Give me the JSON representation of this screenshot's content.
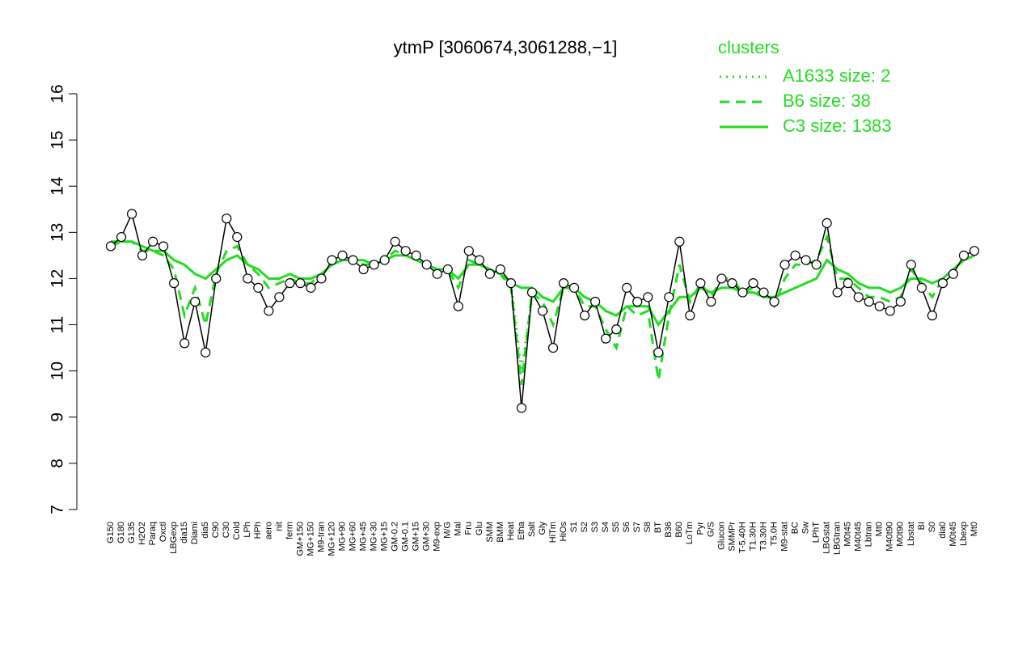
{
  "chart_data": {
    "type": "line",
    "title": "ytmP [3060674,3061288,−1]",
    "legend_title": "clusters",
    "categories": [
      "G150",
      "G180",
      "G135",
      "H2O2",
      "Paraq",
      "Oxctl",
      "LBGexp",
      "dia15",
      "Diami",
      "dia5",
      "C90",
      "C30",
      "Cold",
      "LPh",
      "HPh",
      "aero",
      "nit",
      "ferm",
      "GM+150",
      "MG+150",
      "M9-tran",
      "MG+120",
      "MG+90",
      "MG+60",
      "MG+45",
      "MG+30",
      "MG+15",
      "GM-0.2",
      "GM-0.1",
      "GM+15",
      "GM+30",
      "M9-exp",
      "M/G",
      "Mal",
      "Fru",
      "Glu",
      "SMM",
      "BMM",
      "Heat",
      "Etha",
      "Salt",
      "Gly",
      "HiTm",
      "HiOs",
      "S1",
      "S2",
      "S3",
      "S4",
      "S5",
      "S6",
      "S7",
      "S8",
      "BT",
      "B36",
      "B60",
      "LoTm",
      "Pyr",
      "G/S",
      "Glucon",
      "SMMPr",
      "T-5.40H",
      "T1.30H",
      "T3.30H",
      "T5.0H",
      "M9-stat",
      "BC",
      "Sw",
      "LPhT",
      "LBGstat",
      "LBGtran",
      "M0t45",
      "M40t45",
      "Lbtran",
      "Mt0",
      "M40t90",
      "M0t90",
      "Lbstat",
      "BI",
      "S0",
      "dia0",
      "M0t45",
      "Lbexp",
      "Mt0"
    ],
    "values": [
      12.7,
      12.9,
      13.4,
      12.5,
      12.8,
      12.7,
      11.9,
      10.6,
      11.5,
      10.4,
      12.0,
      13.3,
      12.9,
      12.0,
      11.8,
      11.3,
      11.6,
      11.9,
      11.9,
      11.8,
      12.0,
      12.4,
      12.5,
      12.4,
      12.2,
      12.3,
      12.4,
      12.8,
      12.6,
      12.5,
      12.3,
      12.1,
      12.2,
      11.4,
      12.6,
      12.4,
      12.1,
      12.2,
      11.9,
      9.2,
      11.7,
      11.3,
      10.5,
      11.9,
      11.8,
      11.2,
      11.5,
      10.7,
      10.9,
      11.8,
      11.5,
      11.6,
      10.4,
      11.6,
      12.8,
      11.2,
      11.9,
      11.5,
      12.0,
      11.9,
      11.7,
      11.9,
      11.7,
      11.5,
      12.3,
      12.5,
      12.4,
      12.3,
      13.2,
      11.7,
      11.9,
      11.6,
      11.5,
      11.4,
      11.3,
      11.5,
      12.3,
      11.8,
      11.2,
      11.9,
      12.1,
      12.5,
      12.6
    ],
    "series": [
      {
        "name": "A1633 size: 2",
        "color": "#22dd22",
        "dash": "dotted",
        "values": [
          null,
          null,
          null,
          null,
          null,
          null,
          null,
          null,
          null,
          null,
          null,
          null,
          null,
          null,
          null,
          null,
          null,
          null,
          null,
          null,
          null,
          null,
          null,
          null,
          null,
          null,
          null,
          null,
          null,
          null,
          null,
          null,
          null,
          null,
          null,
          null,
          null,
          null,
          11.9,
          10.0,
          11.6,
          null,
          null,
          null,
          null,
          null,
          null,
          null,
          null,
          null,
          null,
          null,
          null,
          null,
          null,
          null,
          null,
          null,
          null,
          null,
          null,
          null,
          null,
          null,
          null,
          null,
          null,
          null,
          null,
          null,
          null,
          null,
          null,
          null,
          null,
          null,
          null,
          null,
          null,
          null,
          null,
          null,
          null
        ]
      },
      {
        "name": "B6 size: 38",
        "color": "#22dd22",
        "dash": "dashed",
        "values": [
          12.7,
          12.8,
          12.8,
          12.6,
          12.6,
          12.5,
          12.2,
          11.2,
          11.8,
          11.0,
          12.1,
          12.6,
          12.7,
          12.3,
          12.1,
          11.8,
          11.9,
          12.0,
          11.9,
          11.9,
          12.1,
          12.3,
          12.4,
          12.4,
          12.3,
          12.3,
          12.4,
          12.6,
          12.5,
          12.4,
          12.3,
          12.2,
          12.2,
          11.8,
          12.4,
          12.3,
          12.2,
          12.1,
          11.8,
          9.7,
          11.7,
          11.5,
          11.0,
          11.8,
          11.8,
          11.4,
          11.4,
          10.9,
          10.5,
          11.4,
          11.2,
          11.3,
          9.8,
          11.2,
          12.3,
          11.5,
          11.9,
          11.6,
          12.0,
          12.0,
          11.7,
          11.8,
          11.6,
          11.4,
          12.0,
          12.3,
          12.3,
          12.4,
          12.9,
          12.0,
          12.0,
          11.8,
          11.6,
          11.6,
          11.5,
          11.6,
          12.2,
          11.9,
          11.6,
          12.0,
          12.2,
          12.4,
          12.5
        ]
      },
      {
        "name": "C3 size: 1383",
        "color": "#22dd22",
        "dash": "solid",
        "values": [
          12.8,
          12.8,
          12.8,
          12.7,
          12.6,
          12.6,
          12.4,
          12.3,
          12.1,
          12.0,
          12.2,
          12.4,
          12.5,
          12.3,
          12.2,
          12.0,
          12.0,
          12.1,
          12.0,
          12.0,
          12.1,
          12.3,
          12.4,
          12.4,
          12.4,
          12.3,
          12.4,
          12.5,
          12.5,
          12.4,
          12.3,
          12.2,
          12.2,
          12.0,
          12.3,
          12.3,
          12.2,
          12.1,
          11.9,
          11.8,
          11.8,
          11.6,
          11.5,
          11.8,
          11.8,
          11.6,
          11.5,
          11.3,
          11.2,
          11.4,
          11.4,
          11.4,
          11.0,
          11.3,
          11.6,
          11.6,
          11.8,
          11.7,
          11.8,
          11.8,
          11.7,
          11.7,
          11.6,
          11.6,
          11.7,
          11.8,
          11.9,
          12.0,
          12.4,
          12.2,
          12.1,
          11.9,
          11.8,
          11.8,
          11.7,
          11.8,
          12.0,
          12.0,
          11.9,
          12.0,
          12.2,
          12.4,
          12.5
        ]
      }
    ],
    "ylim": [
      7,
      16
    ],
    "yticks": [
      7,
      8,
      9,
      10,
      11,
      12,
      13,
      14,
      15,
      16
    ]
  }
}
